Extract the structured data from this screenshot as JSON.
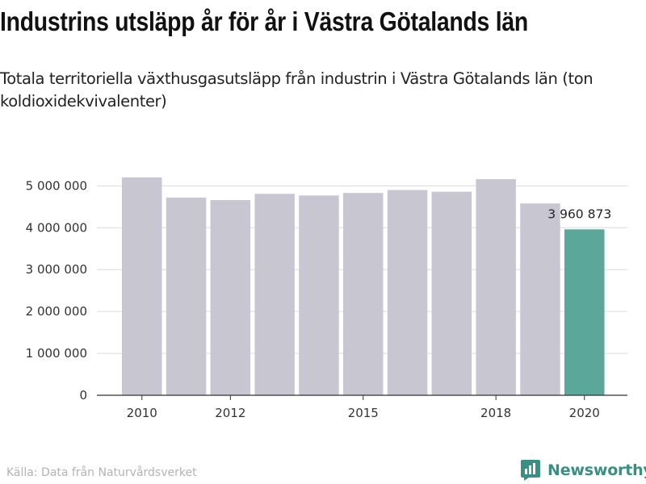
{
  "title": "Industrins utsläpp år för år i Västra Götalands län",
  "subtitle": "Totala territoriella växthusgasutsläpp från industrin i Västra Götalands län (ton koldioxidekvivalenter)",
  "source": "Källa: Data från Naturvårdsverket",
  "brand": {
    "name": "Newsworthy",
    "icon": "newsworthy-logo-icon"
  },
  "colors": {
    "bar": "#c8c7d1",
    "highlight": "#5ba89a",
    "brand": "#3a8f83"
  },
  "chart_data": {
    "type": "bar",
    "categories": [
      "2010",
      "2011",
      "2012",
      "2013",
      "2014",
      "2015",
      "2016",
      "2017",
      "2018",
      "2019",
      "2020"
    ],
    "values": [
      5200000,
      4720000,
      4660000,
      4810000,
      4770000,
      4830000,
      4900000,
      4860000,
      5160000,
      4580000,
      3960873
    ],
    "highlight_index": 10,
    "data_label": "3 960 873",
    "ylim": [
      0,
      5200000
    ],
    "yticks": [
      0,
      1000000,
      2000000,
      3000000,
      4000000,
      5000000
    ],
    "ytick_labels": [
      "0",
      "1 000 000",
      "2 000 000",
      "3 000 000",
      "4 000 000",
      "5 000 000"
    ],
    "xtick_labels": [
      "2010",
      "2012",
      "2015",
      "2018",
      "2020"
    ],
    "xlabel": "",
    "ylabel": "",
    "grid": true
  }
}
